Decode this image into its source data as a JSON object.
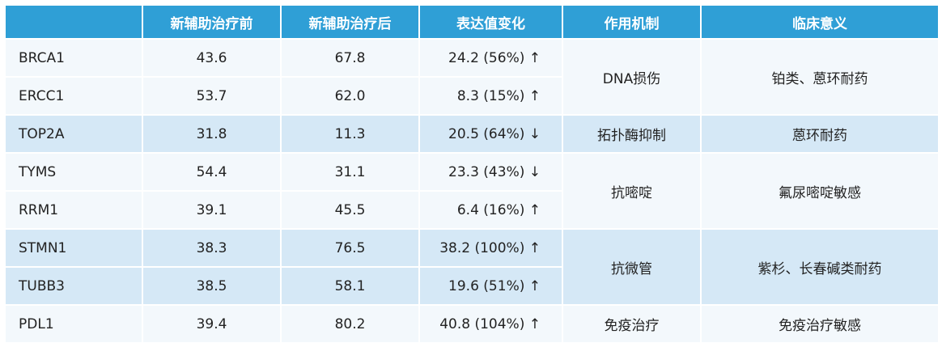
{
  "headers": [
    "",
    "新辅助治疗前",
    "新辅助治疗后",
    "表达值变化",
    "作用机制",
    "临床意义"
  ],
  "rows": [
    {
      "gene": "BRCA1",
      "before": "43.6",
      "after": "67.8",
      "change": "24.2 (56%) ↑"
    },
    {
      "gene": "ERCC1",
      "before": "53.7",
      "after": "62.0",
      "change": "8.3 (15%) ↑"
    },
    {
      "gene": "TOP2A",
      "before": "31.8",
      "after": "11.3",
      "change": "20.5 (64%) ↓"
    },
    {
      "gene": "TYMS",
      "before": "54.4",
      "after": "31.1",
      "change": "23.3 (43%) ↓"
    },
    {
      "gene": "RRM1",
      "before": "39.1",
      "after": "45.5",
      "change": "6.4 (16%) ↑"
    },
    {
      "gene": "STMN1",
      "before": "38.3",
      "after": "76.5",
      "change": "38.2 (100%) ↑"
    },
    {
      "gene": "TUBB3",
      "before": "38.5",
      "after": "58.1",
      "change": "19.6 (51%) ↑"
    },
    {
      "gene": "PDL1",
      "before": "39.4",
      "after": "80.2",
      "change": "40.8 (104%) ↑"
    }
  ],
  "groups": [
    {
      "mechanism": "DNA损伤",
      "significance": "铂类、蒽环耐药"
    },
    {
      "mechanism": "拓扑酶抑制",
      "significance": "蒽环耐药"
    },
    {
      "mechanism": "抗嘧啶",
      "significance": "氟尿嘧啶敏感"
    },
    {
      "mechanism": "抗微管",
      "significance": "紫杉、长春碱类耐药"
    },
    {
      "mechanism": "免疫治疗",
      "significance": "免疫治疗敏感"
    }
  ],
  "colors": {
    "header_bg": "#2f9fd6",
    "row_light": "#f3f8fc",
    "row_dark": "#d5e8f6"
  }
}
